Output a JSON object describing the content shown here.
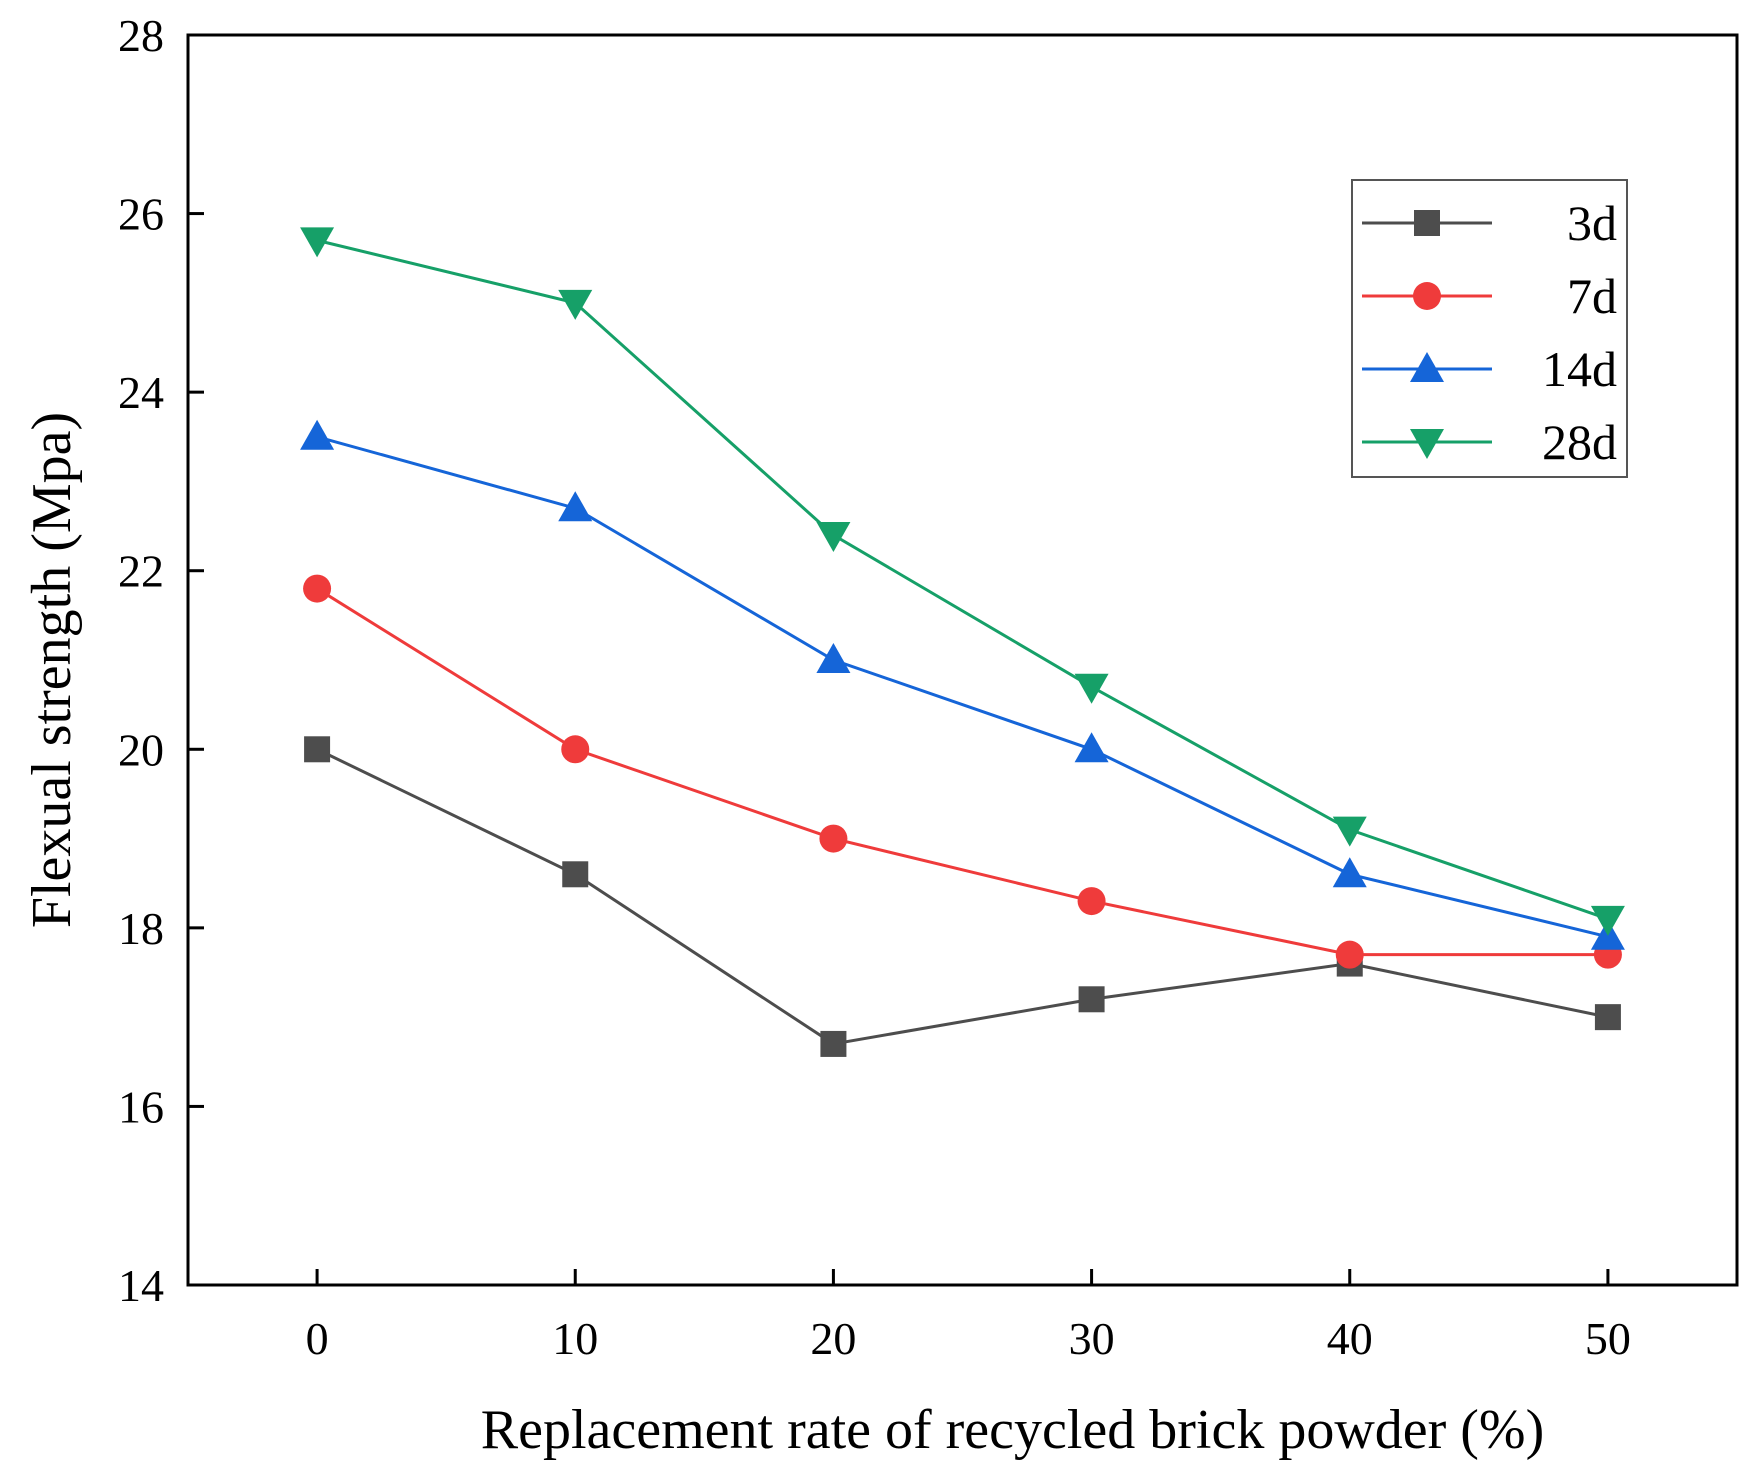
{
  "chart_data": {
    "type": "line",
    "title": "",
    "xlabel": "Replacement rate of recycled brick powder (%)",
    "ylabel": "Flexual strength (Mpa)",
    "x": [
      0,
      10,
      20,
      30,
      40,
      50
    ],
    "xlim": [
      -5,
      55
    ],
    "ylim": [
      14,
      28
    ],
    "xticks": [
      "0",
      "10",
      "20",
      "30",
      "40",
      "50"
    ],
    "yticks": [
      "14",
      "16",
      "18",
      "20",
      "22",
      "24",
      "26",
      "28"
    ],
    "legend_position": "top-right",
    "grid": false,
    "series": [
      {
        "name": "3d",
        "color": "#4d4d4d",
        "marker": "square",
        "values": [
          20.0,
          18.6,
          16.7,
          17.2,
          17.6,
          17.0
        ]
      },
      {
        "name": "7d",
        "color": "#ef3b3b",
        "marker": "circle",
        "values": [
          21.8,
          20.0,
          19.0,
          18.3,
          17.7,
          17.7
        ]
      },
      {
        "name": "14d",
        "color": "#1565d8",
        "marker": "triangle-up",
        "values": [
          23.5,
          22.7,
          21.0,
          20.0,
          18.6,
          17.9
        ]
      },
      {
        "name": "28d",
        "color": "#16a068",
        "marker": "triangle-down",
        "values": [
          25.7,
          25.0,
          22.4,
          20.7,
          19.1,
          18.1
        ]
      }
    ]
  }
}
